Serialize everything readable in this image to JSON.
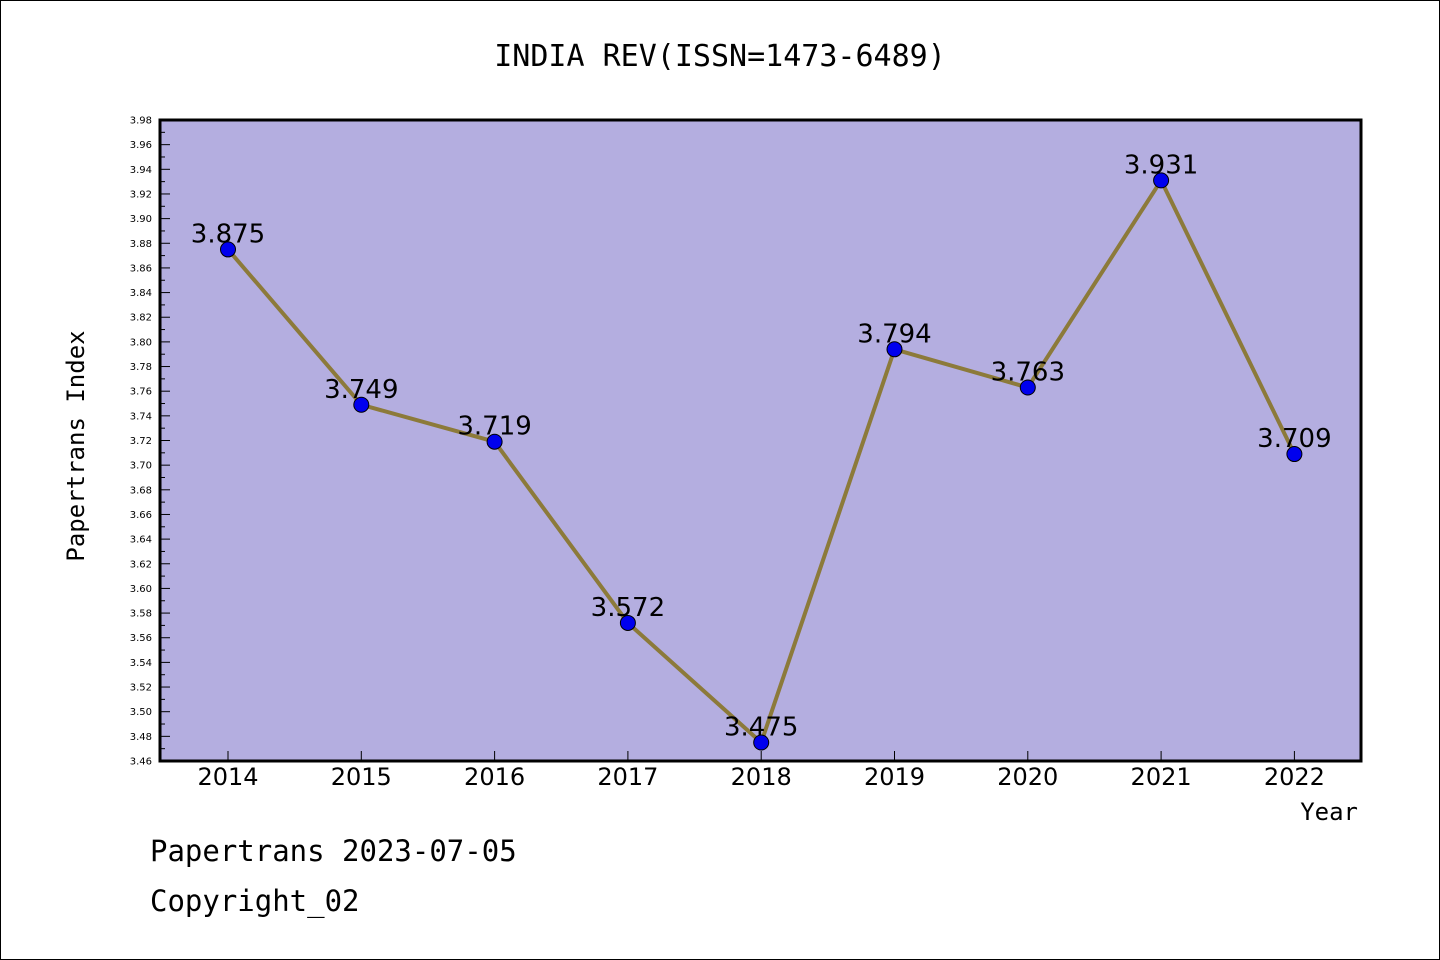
{
  "chart_data": {
    "type": "line",
    "title": "INDIA REV(ISSN=1473-6489)",
    "xlabel": "Year",
    "ylabel": "Papertrans Index",
    "categories": [
      "2014",
      "2015",
      "2016",
      "2017",
      "2018",
      "2019",
      "2020",
      "2021",
      "2022"
    ],
    "values": [
      3.875,
      3.749,
      3.719,
      3.572,
      3.475,
      3.794,
      3.763,
      3.931,
      3.709
    ],
    "data_labels": [
      "3.875",
      "3.749",
      "3.719",
      "3.572",
      "3.475",
      "3.794",
      "3.763",
      "3.931",
      "3.709"
    ],
    "ylim": [
      3.46,
      3.98
    ],
    "ytick_step": 0.02,
    "grid": false,
    "colors": {
      "plot_background": "#b4aee0",
      "line": "#8c7a3a",
      "marker": "#0000ee"
    }
  },
  "footer": {
    "line1": "Papertrans 2023-07-05",
    "line2": "Copyright_02"
  }
}
